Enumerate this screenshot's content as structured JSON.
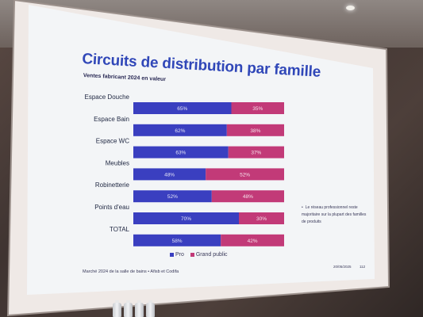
{
  "slide": {
    "title": "Circuits de distribution par famille",
    "subtitle": "Ventes fabricant 2024 en valeur",
    "note": "Le réseau professionnel reste majoritaire sur la plupart des familles de produits",
    "footer_source": "Marché 2024 de la salle de bains • Afisb et Codifa",
    "footer_date": "20/05/2025",
    "footer_page": "112"
  },
  "colors": {
    "pro": "#3a3fc0",
    "grand_public": "#c23a78",
    "title": "#3047b8",
    "slide_background": "#f3f5f7"
  },
  "chart_data": {
    "type": "bar",
    "orientation": "horizontal",
    "stacked": true,
    "normalized_percent": true,
    "categories": [
      "Espace Douche",
      "Espace Bain",
      "Espace WC",
      "Meubles",
      "Robinetterie",
      "Points d'eau",
      "TOTAL"
    ],
    "series": [
      {
        "name": "Pro",
        "values": [
          65,
          62,
          63,
          48,
          52,
          70,
          58
        ]
      },
      {
        "name": "Grand public",
        "values": [
          35,
          38,
          37,
          52,
          48,
          30,
          42
        ]
      }
    ],
    "data_labels": [
      [
        "65%",
        "62%",
        "63%",
        "48%",
        "52%",
        "70%",
        "58%"
      ],
      [
        "35%",
        "38%",
        "37%",
        "52%",
        "48%",
        "30%",
        "42%"
      ]
    ],
    "xlim": [
      0,
      100
    ],
    "grid": false,
    "legend_position": "bottom"
  }
}
